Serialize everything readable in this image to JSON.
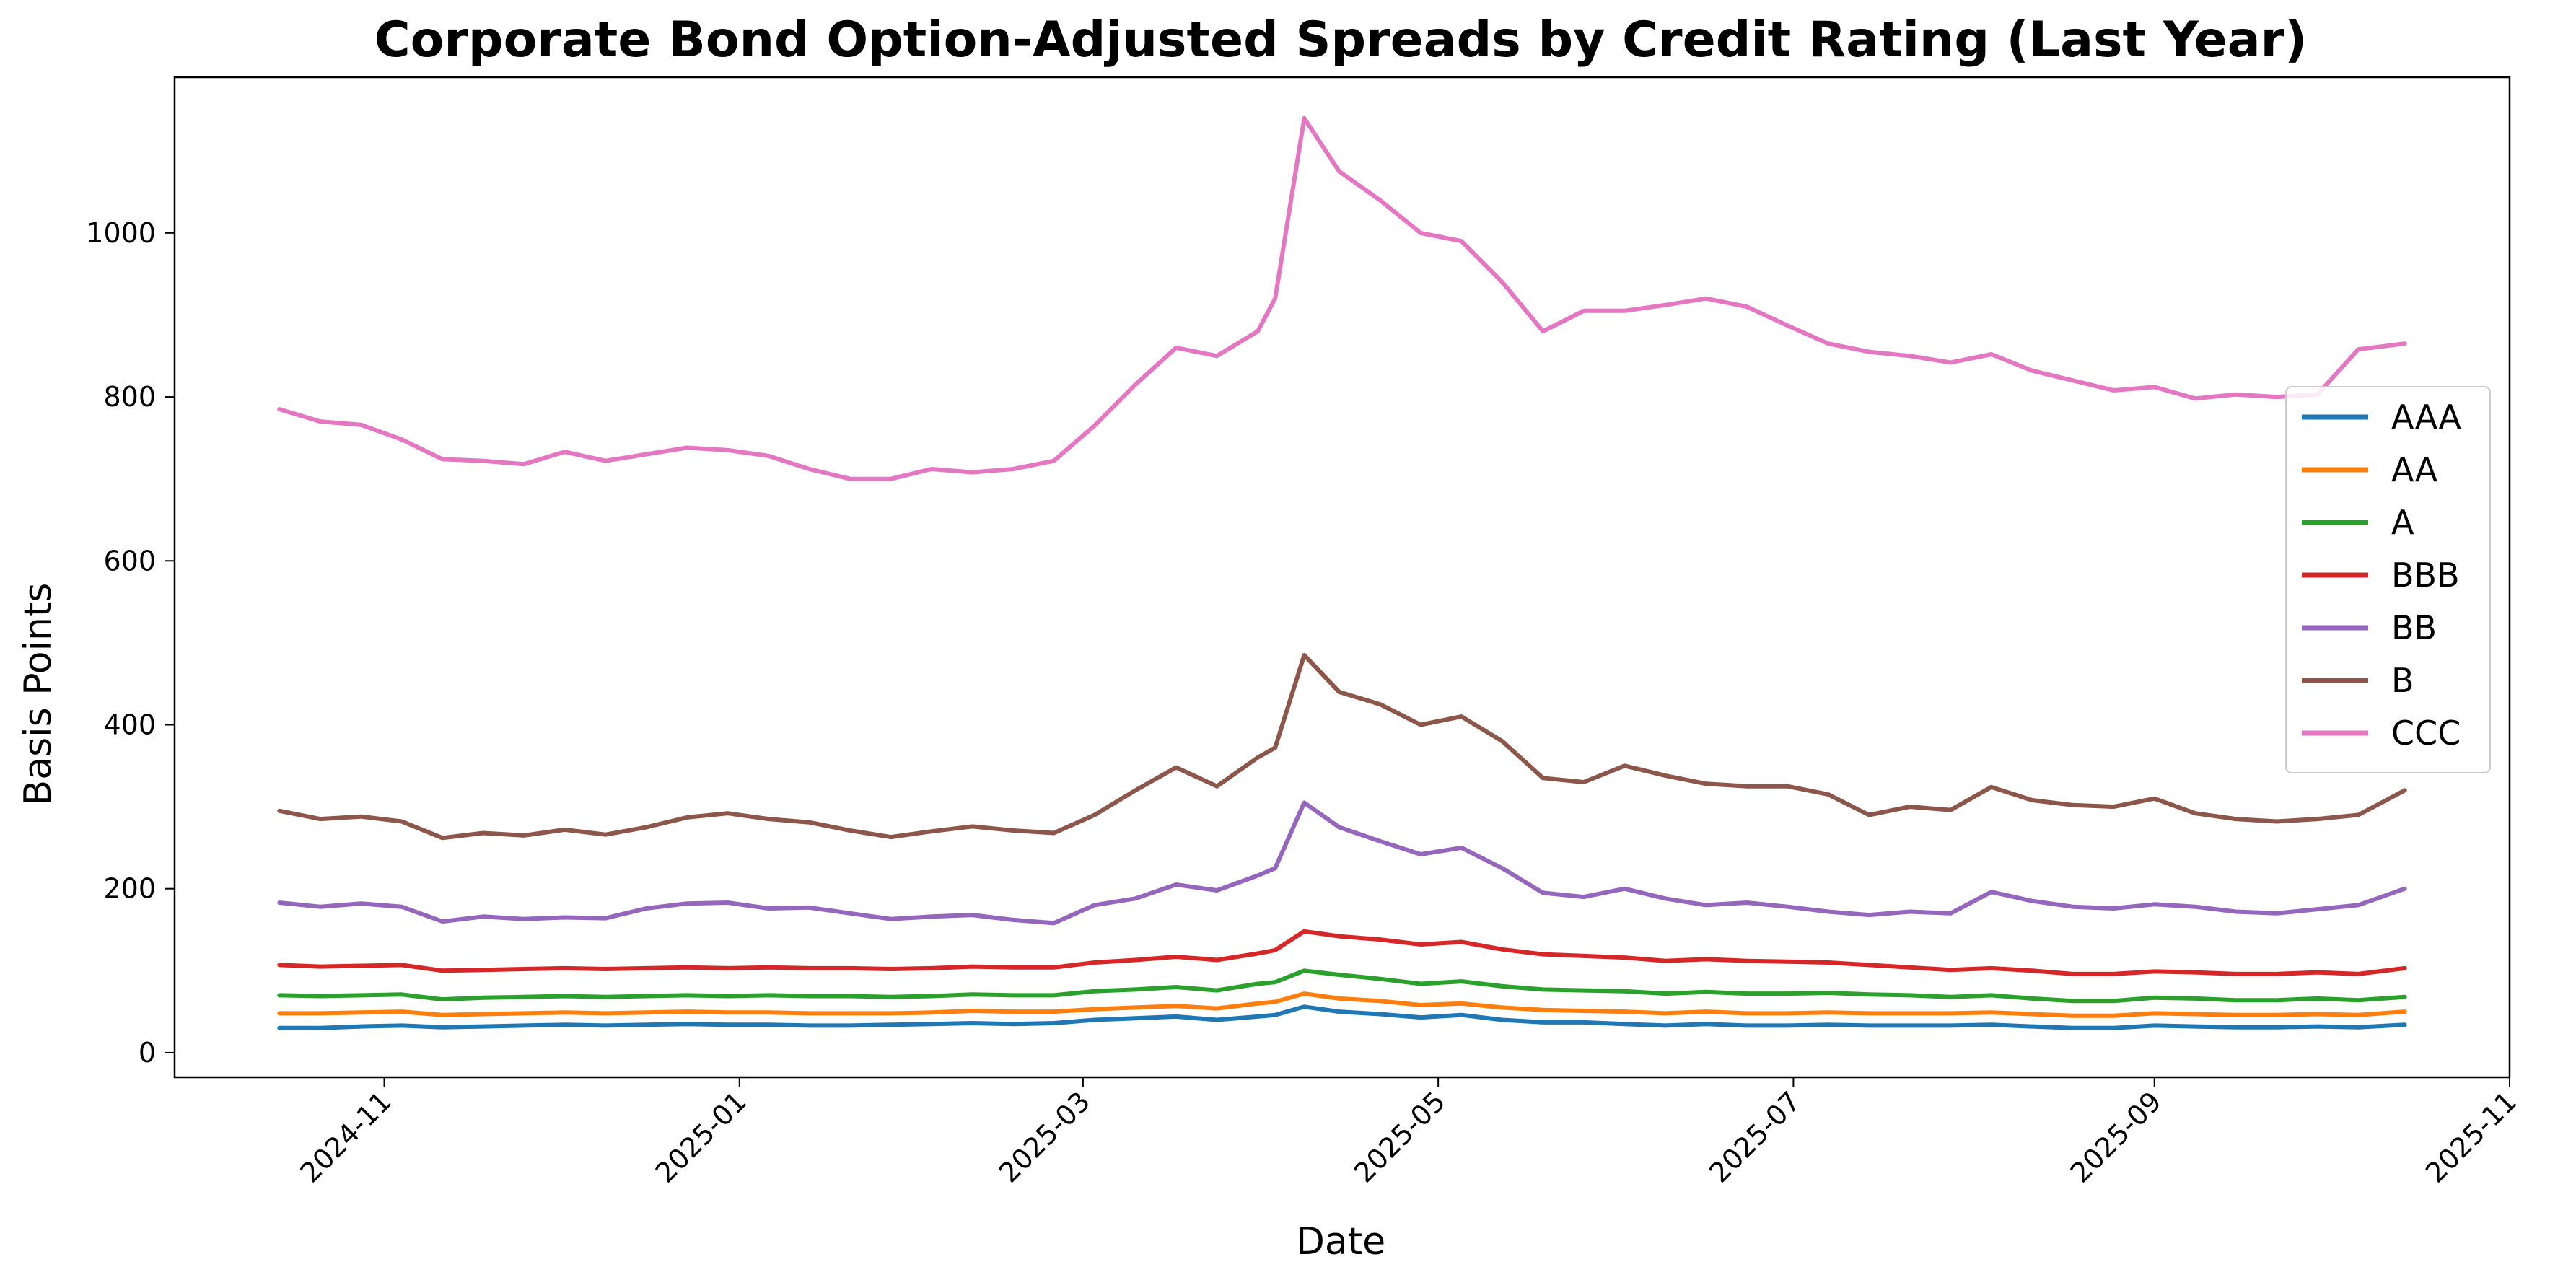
{
  "chart_data": {
    "type": "line",
    "title": "Corporate Bond Option-Adjusted Spreads by Credit Rating (Last Year)",
    "xlabel": "Date",
    "ylabel": "Basis Points",
    "xlim": [
      "2024-09-26",
      "2025-11-01"
    ],
    "ylim": [
      -30,
      1190
    ],
    "x_ticks": [
      "2024-11",
      "2025-01",
      "2025-03",
      "2025-05",
      "2025-07",
      "2025-09",
      "2025-11"
    ],
    "y_ticks": [
      0,
      200,
      400,
      600,
      800,
      1000
    ],
    "grid": false,
    "legend_position": "center-right",
    "x": [
      "2024-10-14",
      "2024-10-21",
      "2024-10-28",
      "2024-11-04",
      "2024-11-11",
      "2024-11-18",
      "2024-11-25",
      "2024-12-02",
      "2024-12-09",
      "2024-12-16",
      "2024-12-23",
      "2024-12-30",
      "2025-01-06",
      "2025-01-13",
      "2025-01-20",
      "2025-01-27",
      "2025-02-03",
      "2025-02-10",
      "2025-02-17",
      "2025-02-24",
      "2025-03-03",
      "2025-03-10",
      "2025-03-17",
      "2025-03-24",
      "2025-03-31",
      "2025-04-03",
      "2025-04-08",
      "2025-04-14",
      "2025-04-21",
      "2025-04-28",
      "2025-05-05",
      "2025-05-12",
      "2025-05-19",
      "2025-05-26",
      "2025-06-02",
      "2025-06-09",
      "2025-06-16",
      "2025-06-23",
      "2025-06-30",
      "2025-07-07",
      "2025-07-14",
      "2025-07-21",
      "2025-07-28",
      "2025-08-04",
      "2025-08-11",
      "2025-08-18",
      "2025-08-25",
      "2025-09-01",
      "2025-09-08",
      "2025-09-15",
      "2025-09-22",
      "2025-09-29",
      "2025-10-06",
      "2025-10-14"
    ],
    "series": [
      {
        "name": "AAA",
        "color": "#1f77b4",
        "values": [
          30,
          30,
          32,
          33,
          31,
          32,
          33,
          34,
          33,
          34,
          35,
          34,
          34,
          33,
          33,
          34,
          35,
          36,
          35,
          36,
          40,
          42,
          44,
          40,
          44,
          46,
          56,
          50,
          47,
          43,
          46,
          40,
          37,
          37,
          35,
          33,
          35,
          33,
          33,
          34,
          33,
          33,
          33,
          34,
          32,
          30,
          30,
          33,
          32,
          31,
          31,
          32,
          31,
          34
        ]
      },
      {
        "name": "AA",
        "color": "#ff7f0e",
        "values": [
          48,
          48,
          49,
          50,
          46,
          47,
          48,
          49,
          48,
          49,
          50,
          49,
          49,
          48,
          48,
          48,
          49,
          51,
          50,
          50,
          53,
          55,
          57,
          54,
          60,
          62,
          72,
          66,
          63,
          58,
          60,
          55,
          52,
          51,
          50,
          48,
          50,
          48,
          48,
          49,
          48,
          48,
          48,
          49,
          47,
          45,
          45,
          48,
          47,
          46,
          46,
          47,
          46,
          50
        ]
      },
      {
        "name": "A",
        "color": "#2ca02c",
        "values": [
          70,
          69,
          70,
          71,
          65,
          67,
          68,
          69,
          68,
          69,
          70,
          69,
          70,
          69,
          69,
          68,
          69,
          71,
          70,
          70,
          75,
          77,
          80,
          76,
          84,
          86,
          100,
          95,
          90,
          84,
          87,
          81,
          77,
          76,
          75,
          72,
          74,
          72,
          72,
          73,
          71,
          70,
          68,
          70,
          66,
          63,
          63,
          67,
          66,
          64,
          64,
          66,
          64,
          68
        ]
      },
      {
        "name": "BBB",
        "color": "#d62728",
        "values": [
          107,
          105,
          106,
          107,
          100,
          101,
          102,
          103,
          102,
          103,
          104,
          103,
          104,
          103,
          103,
          102,
          103,
          105,
          104,
          104,
          110,
          113,
          117,
          113,
          121,
          125,
          148,
          142,
          138,
          132,
          135,
          126,
          120,
          118,
          116,
          112,
          114,
          112,
          111,
          110,
          107,
          104,
          101,
          103,
          100,
          96,
          96,
          99,
          98,
          96,
          96,
          98,
          96,
          103
        ]
      },
      {
        "name": "BB",
        "color": "#9467bd",
        "values": [
          183,
          178,
          182,
          178,
          160,
          166,
          163,
          165,
          164,
          176,
          182,
          183,
          176,
          177,
          170,
          163,
          166,
          168,
          162,
          158,
          180,
          188,
          205,
          198,
          216,
          225,
          305,
          275,
          258,
          242,
          250,
          225,
          195,
          190,
          200,
          188,
          180,
          183,
          178,
          172,
          168,
          172,
          170,
          196,
          185,
          178,
          176,
          181,
          178,
          172,
          170,
          175,
          180,
          200
        ]
      },
      {
        "name": "B",
        "color": "#8c564b",
        "values": [
          295,
          285,
          288,
          282,
          262,
          268,
          265,
          272,
          266,
          275,
          287,
          292,
          285,
          281,
          271,
          263,
          270,
          276,
          271,
          268,
          290,
          320,
          348,
          325,
          360,
          372,
          485,
          440,
          425,
          400,
          410,
          380,
          335,
          330,
          350,
          338,
          328,
          325,
          325,
          315,
          290,
          300,
          296,
          324,
          308,
          302,
          300,
          310,
          292,
          285,
          282,
          285,
          290,
          320
        ]
      },
      {
        "name": "CCC",
        "color": "#e377c2",
        "values": [
          785,
          770,
          766,
          748,
          724,
          722,
          718,
          733,
          722,
          730,
          738,
          735,
          728,
          712,
          700,
          700,
          712,
          708,
          712,
          722,
          765,
          815,
          860,
          850,
          880,
          920,
          1140,
          1075,
          1040,
          1000,
          990,
          940,
          880,
          905,
          905,
          912,
          920,
          910,
          887,
          865,
          855,
          850,
          842,
          852,
          832,
          820,
          808,
          812,
          798,
          803,
          800,
          803,
          858,
          865
        ]
      }
    ]
  }
}
